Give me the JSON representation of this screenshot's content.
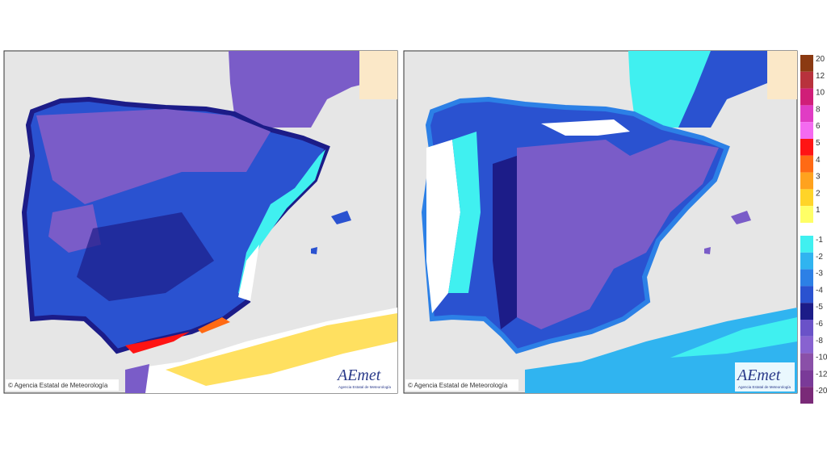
{
  "maps": [
    {
      "credit": "© Agencia Estatal de Meteorología",
      "logo": "AEmet",
      "logo_subtitle": "Agencia Estatal de Meteorología"
    },
    {
      "credit": "© Agencia Estatal de Meteorología",
      "logo": "AEmet",
      "logo_subtitle": "Agencia Estatal de Meteorología"
    }
  ],
  "legend": {
    "items": [
      {
        "label": 20,
        "color": "#8b3a12"
      },
      {
        "label": 12,
        "color": "#b8323c"
      },
      {
        "label": 10,
        "color": "#d01e78"
      },
      {
        "label": 8,
        "color": "#e03cc4"
      },
      {
        "label": 6,
        "color": "#f46af0"
      },
      {
        "label": 5,
        "color": "#ff1414"
      },
      {
        "label": 4,
        "color": "#ff6a14"
      },
      {
        "label": 3,
        "color": "#ffa21e"
      },
      {
        "label": 2,
        "color": "#ffd428"
      },
      {
        "label": 1,
        "color": "#ffff66"
      },
      {
        "label": -1,
        "color": "#40f0f0"
      },
      {
        "label": -2,
        "color": "#30b4f0"
      },
      {
        "label": -3,
        "color": "#2c80e6"
      },
      {
        "label": -4,
        "color": "#2a52d0"
      },
      {
        "label": -5,
        "color": "#1c1c88"
      },
      {
        "label": -6,
        "color": "#6a52c8"
      },
      {
        "label": -8,
        "color": "#8862d0"
      },
      {
        "label": -10,
        "color": "#8a50a8"
      },
      {
        "label": -12,
        "color": "#7a3a98"
      },
      {
        "label": -20,
        "color": "#7a2a78"
      }
    ]
  }
}
